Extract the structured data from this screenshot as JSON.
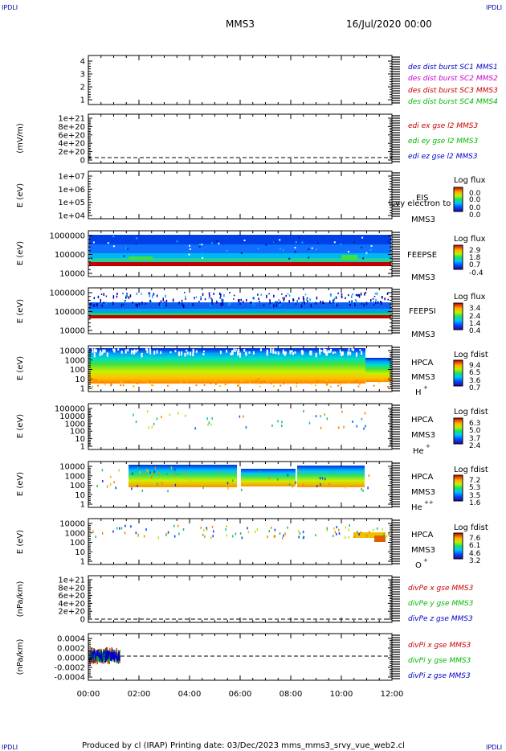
{
  "header": {
    "corner_left": "IPDLI",
    "corner_right": "IPDLI",
    "mission": "MMS3",
    "date": "16/Jul/2020 00:00"
  },
  "footer": {
    "text": "Produced by cl (IRAP)   Printing date: 03/Dec/2023   mms_mms3_srvy_vue_web2.cl",
    "corner_left": "IPDLI",
    "corner_right": "IPDLI"
  },
  "colors": {
    "blue": "#0000cc",
    "magenta": "#cc00cc",
    "red": "#cc0000",
    "green": "#00bb00"
  },
  "chart_data": [
    {
      "type": "line",
      "panel": "burst",
      "y_ticks": [
        "4",
        "3",
        "2",
        "1"
      ],
      "legend": [
        {
          "text": "des dist burst SC1 MMS1",
          "color": "#0000cc"
        },
        {
          "text": "des dist burst SC2 MMS2",
          "color": "#cc00cc"
        },
        {
          "text": "des dist burst SC3 MMS3",
          "color": "#cc0000"
        },
        {
          "text": "des dist burst SC4 MMS4",
          "color": "#00bb00"
        }
      ]
    },
    {
      "type": "line",
      "panel": "edi",
      "ylabel": "(mV/m)",
      "y_ticks": [
        "1e+21",
        "8e+20",
        "6e+20",
        "4e+20",
        "2e+20",
        "0"
      ],
      "legend": [
        {
          "text": "edi ex gse l2 MMS3",
          "color": "#cc0000"
        },
        {
          "text": "edi ey gse l2 MMS3",
          "color": "#00bb00"
        },
        {
          "text": "edi ez gse l2 MMS3",
          "color": "#0000cc"
        }
      ]
    },
    {
      "type": "heatmap",
      "panel": "eis",
      "ylabel": "E (eV)",
      "y_ticks": [
        "1e+07",
        "1e+06",
        "1e+05",
        "1e+04"
      ],
      "side_labels": [
        "EIS",
        "MMS3"
      ],
      "overlay": "lcvy electron to",
      "colorbar": {
        "title": "Log flux",
        "ticks": [
          "0.0",
          "0.0",
          "0.0",
          "0.0"
        ]
      }
    },
    {
      "type": "heatmap",
      "panel": "feepse",
      "ylabel": "E (eV)",
      "y_ticks": [
        "1000000",
        "100000",
        "10000"
      ],
      "side_labels": [
        "FEEPSE",
        "MMS3"
      ],
      "colorbar": {
        "title": "Log flux",
        "ticks": [
          "2.9",
          "1.8",
          "0.7",
          "-0.4"
        ]
      }
    },
    {
      "type": "heatmap",
      "panel": "feepsi",
      "ylabel": "E (eV)",
      "y_ticks": [
        "1000000",
        "100000",
        "10000"
      ],
      "side_labels": [
        "FEEPSI",
        "MMS3"
      ],
      "colorbar": {
        "title": "Log flux",
        "ticks": [
          "3.4",
          "2.4",
          "1.4",
          "0.4"
        ]
      }
    },
    {
      "type": "heatmap",
      "panel": "hpca-h",
      "ylabel": "E (eV)",
      "y_ticks": [
        "10000",
        "1000",
        "100",
        "10",
        "1"
      ],
      "side_labels": [
        "HPCA",
        "MMS3"
      ],
      "species": "H",
      "species_sup": "+",
      "colorbar": {
        "title": "Log fdist",
        "ticks": [
          "9.4",
          "6.5",
          "3.6",
          "0.7"
        ]
      }
    },
    {
      "type": "heatmap",
      "panel": "hpca-he",
      "ylabel": "E (eV)",
      "y_ticks": [
        "100000",
        "10000",
        "1000",
        "100",
        "10",
        "1"
      ],
      "side_labels": [
        "HPCA",
        "MMS3"
      ],
      "species": "He",
      "species_sup": "+",
      "colorbar": {
        "title": "Log fdist",
        "ticks": [
          "6.3",
          "5.0",
          "3.7",
          "2.4"
        ]
      }
    },
    {
      "type": "heatmap",
      "panel": "hpca-he2",
      "ylabel": "E (eV)",
      "y_ticks": [
        "10000",
        "1000",
        "100",
        "10",
        "1"
      ],
      "side_labels": [
        "HPCA",
        "MMS3"
      ],
      "species": "He",
      "species_sup": "++",
      "colorbar": {
        "title": "Log fdist",
        "ticks": [
          "7.2",
          "5.3",
          "3.5",
          "1.6"
        ]
      }
    },
    {
      "type": "heatmap",
      "panel": "hpca-o",
      "ylabel": "E (eV)",
      "y_ticks": [
        "10000",
        "1000",
        "100",
        "10",
        "1"
      ],
      "side_labels": [
        "HPCA",
        "MMS3"
      ],
      "species": "O",
      "species_sup": "+",
      "colorbar": {
        "title": "Log fdist",
        "ticks": [
          "7.6",
          "6.1",
          "4.6",
          "3.2"
        ]
      }
    },
    {
      "type": "line",
      "panel": "divpe",
      "ylabel": "(nPa/km)",
      "y_ticks": [
        "1e+21",
        "8e+20",
        "6e+20",
        "4e+20",
        "2e+20",
        "0"
      ],
      "legend": [
        {
          "text": "divPe x gse MMS3",
          "color": "#cc0000"
        },
        {
          "text": "divPe y gse MMS3",
          "color": "#00bb00"
        },
        {
          "text": "divPe z gse MMS3",
          "color": "#0000cc"
        }
      ]
    },
    {
      "type": "line",
      "panel": "divpi",
      "ylabel": "(nPa/km)",
      "y_ticks": [
        "0.0004",
        "0.0002",
        "0.0000",
        "-0.0002",
        "-0.0004"
      ],
      "legend": [
        {
          "text": "divPi x gse MMS3",
          "color": "#cc0000"
        },
        {
          "text": "divPi y gse MMS3",
          "color": "#00bb00"
        },
        {
          "text": "divPi z gse MMS3",
          "color": "#0000cc"
        }
      ]
    }
  ],
  "x_axis": {
    "ticks": [
      "00:00",
      "02:00",
      "04:00",
      "06:00",
      "08:00",
      "10:00",
      "12:00"
    ]
  }
}
